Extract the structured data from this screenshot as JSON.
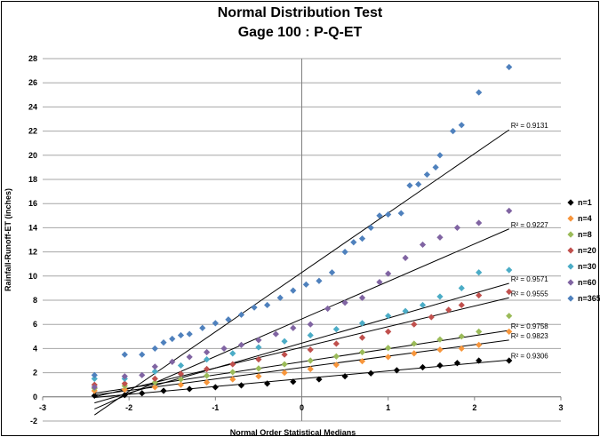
{
  "chart_data": {
    "type": "scatter",
    "title": "Normal Distribution Test",
    "subtitle": "Gage 100 : P-Q-ET",
    "xlabel": "Normal Order Statistical Medians",
    "ylabel": "Rainfall-Runoff-ET (inches)",
    "xlim": [
      -3,
      3
    ],
    "ylim": [
      -2,
      28
    ],
    "x_ticks": [
      "-3",
      "-2",
      "-1",
      "0",
      "1",
      "2",
      "3"
    ],
    "y_ticks": [
      "-2",
      "0",
      "2",
      "4",
      "6",
      "8",
      "10",
      "12",
      "14",
      "16",
      "18",
      "20",
      "22",
      "24",
      "26",
      "28"
    ],
    "grid": "horizontal",
    "legend_position": "right",
    "series": [
      {
        "name": "n=1",
        "color": "#000000",
        "points": [
          [
            -2.4,
            0.1
          ],
          [
            -2.05,
            0.15
          ],
          [
            -1.85,
            0.3
          ],
          [
            -1.6,
            0.5
          ],
          [
            -1.3,
            0.65
          ],
          [
            -1.0,
            0.8
          ],
          [
            -0.7,
            0.95
          ],
          [
            -0.4,
            1.1
          ],
          [
            -0.1,
            1.25
          ],
          [
            0.2,
            1.45
          ],
          [
            0.5,
            1.7
          ],
          [
            0.8,
            1.95
          ],
          [
            1.1,
            2.2
          ],
          [
            1.4,
            2.45
          ],
          [
            1.6,
            2.6
          ],
          [
            1.8,
            2.8
          ],
          [
            2.05,
            3.0
          ],
          [
            2.4,
            3.0
          ]
        ],
        "r2": "R² = 0.9306",
        "fit": [
          [
            -2.4,
            -0.05
          ],
          [
            2.4,
            3.05
          ]
        ]
      },
      {
        "name": "n=4",
        "color": "#f7963c",
        "points": [
          [
            -2.4,
            0.5
          ],
          [
            -2.05,
            0.6
          ],
          [
            -1.7,
            0.8
          ],
          [
            -1.4,
            1.0
          ],
          [
            -1.1,
            1.2
          ],
          [
            -0.8,
            1.45
          ],
          [
            -0.5,
            1.7
          ],
          [
            -0.2,
            2.0
          ],
          [
            0.1,
            2.3
          ],
          [
            0.4,
            2.65
          ],
          [
            0.7,
            2.95
          ],
          [
            1.0,
            3.3
          ],
          [
            1.3,
            3.6
          ],
          [
            1.6,
            3.9
          ],
          [
            1.85,
            4.0
          ],
          [
            2.05,
            4.3
          ],
          [
            2.4,
            5.4
          ]
        ],
        "r2": "R² = 0.9823",
        "fit": [
          [
            -2.4,
            0.15
          ],
          [
            2.4,
            4.7
          ]
        ]
      },
      {
        "name": "n=8",
        "color": "#9bbb59",
        "points": [
          [
            -2.4,
            0.7
          ],
          [
            -2.05,
            0.9
          ],
          [
            -1.7,
            1.2
          ],
          [
            -1.4,
            1.45
          ],
          [
            -1.1,
            1.75
          ],
          [
            -0.8,
            2.05
          ],
          [
            -0.5,
            2.35
          ],
          [
            -0.2,
            2.7
          ],
          [
            0.1,
            3.0
          ],
          [
            0.4,
            3.35
          ],
          [
            0.7,
            3.7
          ],
          [
            1.0,
            4.05
          ],
          [
            1.3,
            4.4
          ],
          [
            1.6,
            4.75
          ],
          [
            1.85,
            5.0
          ],
          [
            2.05,
            5.4
          ],
          [
            2.4,
            6.7
          ]
        ],
        "r2": "R² = 0.9758",
        "fit": [
          [
            -2.4,
            0.3
          ],
          [
            2.4,
            5.5
          ]
        ]
      },
      {
        "name": "n=20",
        "color": "#c0504d",
        "points": [
          [
            -2.4,
            1.0
          ],
          [
            -2.05,
            1.1
          ],
          [
            -1.7,
            1.5
          ],
          [
            -1.4,
            1.9
          ],
          [
            -1.1,
            2.3
          ],
          [
            -0.8,
            2.7
          ],
          [
            -0.5,
            3.1
          ],
          [
            -0.2,
            3.5
          ],
          [
            0.1,
            3.9
          ],
          [
            0.4,
            4.4
          ],
          [
            0.7,
            4.9
          ],
          [
            1.0,
            5.4
          ],
          [
            1.3,
            6.0
          ],
          [
            1.5,
            6.6
          ],
          [
            1.7,
            7.2
          ],
          [
            1.85,
            7.6
          ],
          [
            2.05,
            8.4
          ],
          [
            2.4,
            8.7
          ]
        ],
        "r2": "R² = 0.9555",
        "fit": [
          [
            -2.4,
            0.0
          ],
          [
            2.4,
            8.2
          ]
        ]
      },
      {
        "name": "n=30",
        "color": "#4bacc6",
        "points": [
          [
            -2.4,
            1.5
          ],
          [
            -2.05,
            1.5
          ],
          [
            -1.7,
            2.1
          ],
          [
            -1.4,
            2.6
          ],
          [
            -1.1,
            3.1
          ],
          [
            -0.8,
            3.6
          ],
          [
            -0.5,
            4.1
          ],
          [
            -0.2,
            4.6
          ],
          [
            0.1,
            5.1
          ],
          [
            0.4,
            5.6
          ],
          [
            0.7,
            6.1
          ],
          [
            1.0,
            6.7
          ],
          [
            1.2,
            7.1
          ],
          [
            1.4,
            7.6
          ],
          [
            1.6,
            8.3
          ],
          [
            1.85,
            9.0
          ],
          [
            2.05,
            10.3
          ],
          [
            2.4,
            10.5
          ]
        ],
        "r2": "R² = 0.9571",
        "fit": [
          [
            -2.4,
            -0.5
          ],
          [
            2.4,
            9.4
          ]
        ]
      },
      {
        "name": "n=60",
        "color": "#8064a2",
        "points": [
          [
            -2.4,
            0.8
          ],
          [
            -2.05,
            1.7
          ],
          [
            -1.85,
            1.8
          ],
          [
            -1.7,
            2.5
          ],
          [
            -1.5,
            2.9
          ],
          [
            -1.3,
            3.3
          ],
          [
            -1.1,
            3.7
          ],
          [
            -0.9,
            4.0
          ],
          [
            -0.7,
            4.3
          ],
          [
            -0.5,
            4.7
          ],
          [
            -0.3,
            5.2
          ],
          [
            -0.1,
            5.7
          ],
          [
            0.1,
            6.0
          ],
          [
            0.3,
            7.3
          ],
          [
            0.5,
            7.8
          ],
          [
            0.7,
            8.2
          ],
          [
            0.9,
            9.5
          ],
          [
            1.0,
            10.2
          ],
          [
            1.2,
            11.5
          ],
          [
            1.4,
            12.6
          ],
          [
            1.6,
            13.2
          ],
          [
            1.8,
            14.0
          ],
          [
            2.05,
            14.4
          ],
          [
            2.4,
            15.4
          ]
        ],
        "r2": "R² = 0.9227",
        "fit": [
          [
            -2.4,
            -1.0
          ],
          [
            2.4,
            13.9
          ]
        ]
      },
      {
        "name": "n=365",
        "color": "#4f81bd",
        "points": [
          [
            -2.4,
            1.8
          ],
          [
            -2.05,
            3.5
          ],
          [
            -1.85,
            3.5
          ],
          [
            -1.7,
            4.0
          ],
          [
            -1.6,
            4.5
          ],
          [
            -1.5,
            4.8
          ],
          [
            -1.4,
            5.1
          ],
          [
            -1.3,
            5.2
          ],
          [
            -1.15,
            5.7
          ],
          [
            -1.0,
            6.1
          ],
          [
            -0.85,
            6.4
          ],
          [
            -0.7,
            6.8
          ],
          [
            -0.55,
            7.4
          ],
          [
            -0.4,
            7.6
          ],
          [
            -0.25,
            8.2
          ],
          [
            -0.1,
            8.8
          ],
          [
            0.05,
            9.3
          ],
          [
            0.2,
            9.6
          ],
          [
            0.35,
            10.3
          ],
          [
            0.5,
            12.0
          ],
          [
            0.6,
            12.8
          ],
          [
            0.7,
            13.1
          ],
          [
            0.8,
            14.0
          ],
          [
            0.9,
            15.0
          ],
          [
            1.0,
            15.1
          ],
          [
            1.15,
            15.2
          ],
          [
            1.25,
            17.5
          ],
          [
            1.35,
            17.6
          ],
          [
            1.45,
            18.4
          ],
          [
            1.55,
            19.0
          ],
          [
            1.6,
            20.0
          ],
          [
            1.75,
            22.0
          ],
          [
            1.85,
            22.5
          ],
          [
            2.05,
            25.2
          ],
          [
            2.4,
            27.3
          ]
        ],
        "r2": "R² = 0.9131",
        "fit": [
          [
            -2.4,
            -1.5
          ],
          [
            2.4,
            22.1
          ]
        ]
      }
    ]
  }
}
